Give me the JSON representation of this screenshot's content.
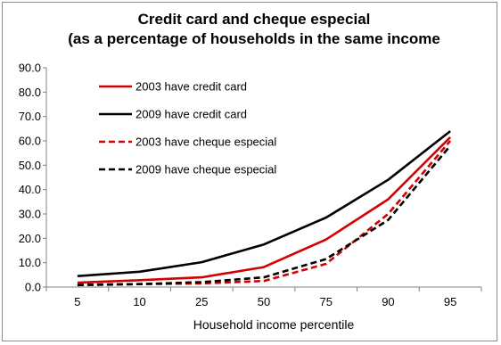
{
  "chart_data": {
    "type": "line",
    "title": "Credit card and cheque especial",
    "subtitle": "(as a percentage of households  in the same income",
    "xlabel": "Household income percentile",
    "ylabel": "",
    "categories": [
      "5",
      "10",
      "25",
      "50",
      "75",
      "90",
      "95"
    ],
    "ylim": [
      0,
      90
    ],
    "yticks": [
      "0.0",
      "10.0",
      "20.0",
      "30.0",
      "40.0",
      "50.0",
      "60.0",
      "70.0",
      "80.0",
      "90.0"
    ],
    "grid": false,
    "legend_position": "upper-left",
    "series": [
      {
        "name": "2003 have credit card",
        "color": "#d40000",
        "dash": "solid",
        "values": [
          1.8,
          2.8,
          4.0,
          8.2,
          19.5,
          36.0,
          61.5
        ]
      },
      {
        "name": "2009 have credit card",
        "color": "#000000",
        "dash": "solid",
        "values": [
          4.5,
          6.3,
          10.2,
          17.5,
          28.5,
          44.0,
          64.0
        ]
      },
      {
        "name": "2003 have cheque especial",
        "color": "#d40000",
        "dash": "dashed",
        "values": [
          1.0,
          1.2,
          1.5,
          2.5,
          9.5,
          30.0,
          60.0
        ]
      },
      {
        "name": "2009 have cheque especial",
        "color": "#000000",
        "dash": "dashed",
        "values": [
          0.8,
          1.2,
          2.0,
          4.0,
          11.5,
          27.5,
          58.0
        ]
      }
    ]
  }
}
